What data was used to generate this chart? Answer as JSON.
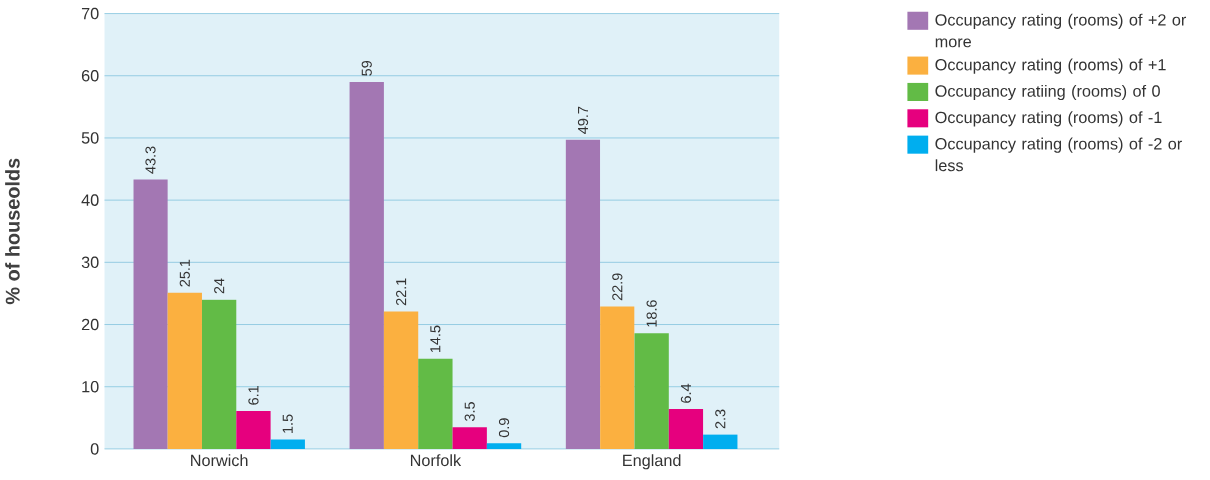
{
  "chart_data": {
    "type": "bar",
    "ylabel": "% of houseolds",
    "categories": [
      "Norwich",
      "Norfolk",
      "England"
    ],
    "series": [
      {
        "name": "Occupancy rating (rooms) of +2 or more",
        "color": "#a377b3",
        "values": [
          43.3,
          59,
          49.7
        ]
      },
      {
        "name": "Occupancy rating (rooms) of +1",
        "color": "#fbb040",
        "values": [
          25.1,
          22.1,
          22.9
        ]
      },
      {
        "name": "Occupancy ratiing (rooms) of 0",
        "color": "#62bb46",
        "values": [
          24,
          14.5,
          18.6
        ]
      },
      {
        "name": "Occupancy rating (rooms) of -1",
        "color": "#e6007e",
        "values": [
          6.1,
          3.5,
          6.4
        ]
      },
      {
        "name": "Occupancy rating (rooms) of  -2 or less",
        "color": "#00aeef",
        "values": [
          1.5,
          0.9,
          2.3
        ]
      }
    ],
    "ylim": [
      0,
      70
    ],
    "yticks": [
      0,
      10,
      20,
      30,
      40,
      50,
      60,
      70
    ],
    "grid": "y",
    "legend": "right",
    "data_labels": true
  }
}
